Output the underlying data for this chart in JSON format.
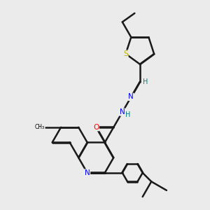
{
  "background_color": "#ebebeb",
  "atom_colors": {
    "S": "#b8b800",
    "N": "#0000ff",
    "O": "#ff0000",
    "C": "#000000",
    "H": "#008080"
  },
  "bond_color": "#1a1a1a",
  "bond_width": 1.8,
  "dbl_sep": 0.018
}
